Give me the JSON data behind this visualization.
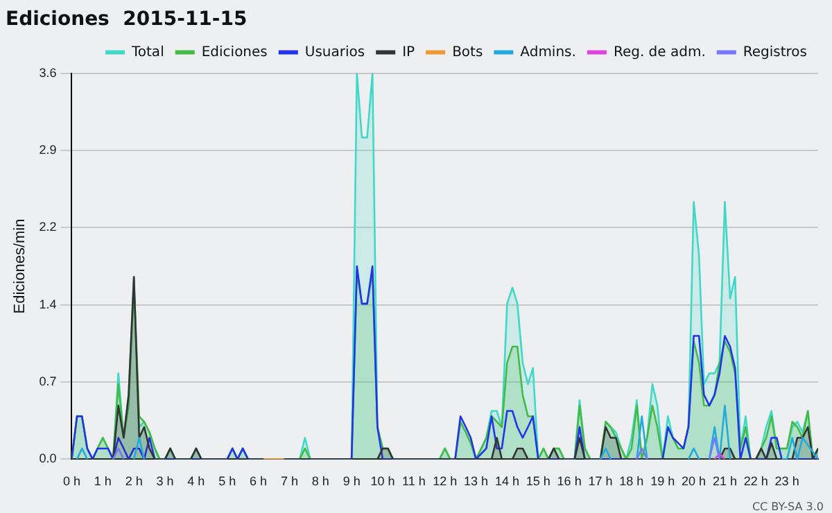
{
  "chart_data": {
    "type": "line",
    "title": "Ediciones  2015-11-15",
    "ylabel": "Ediciones/min",
    "annotations": [
      "CC BY-SA 3.0"
    ],
    "legend": "top right",
    "grid": "y",
    "xlim": [
      0,
      24
    ],
    "xticks": [
      {
        "value": 0,
        "label": "0 h"
      },
      {
        "value": 1,
        "label": "1 h"
      },
      {
        "value": 2,
        "label": "2 h"
      },
      {
        "value": 3,
        "label": "3 h"
      },
      {
        "value": 4,
        "label": "4 h"
      },
      {
        "value": 5,
        "label": "5 h"
      },
      {
        "value": 6,
        "label": "6 h"
      },
      {
        "value": 7,
        "label": "7 h"
      },
      {
        "value": 8,
        "label": "8 h"
      },
      {
        "value": 9,
        "label": "9 h"
      },
      {
        "value": 10,
        "label": "10 h"
      },
      {
        "value": 11,
        "label": "11 h"
      },
      {
        "value": 12,
        "label": "12 h"
      },
      {
        "value": 13,
        "label": "13 h"
      },
      {
        "value": 14,
        "label": "14 h"
      },
      {
        "value": 15,
        "label": "15 h"
      },
      {
        "value": 16,
        "label": "16 h"
      },
      {
        "value": 17,
        "label": "17 h"
      },
      {
        "value": 18,
        "label": "18 h"
      },
      {
        "value": 19,
        "label": "19 h"
      },
      {
        "value": 20,
        "label": "20 h"
      },
      {
        "value": 21,
        "label": "21 h"
      },
      {
        "value": 22,
        "label": "22 h"
      },
      {
        "value": 23,
        "label": "23 h"
      }
    ],
    "ylim": [
      0,
      3.6
    ],
    "yticks": [
      {
        "value": 0,
        "label": "0.0"
      },
      {
        "value": 0.72,
        "label": "0.7"
      },
      {
        "value": 1.44,
        "label": "1.4"
      },
      {
        "value": 2.16,
        "label": "2.2"
      },
      {
        "value": 2.88,
        "label": "2.9"
      },
      {
        "value": 3.6,
        "label": "3.6"
      }
    ],
    "x": [
      0,
      0.17,
      0.33,
      0.5,
      0.67,
      0.83,
      1,
      1.17,
      1.33,
      1.5,
      1.67,
      1.83,
      2,
      2.17,
      2.33,
      2.5,
      2.67,
      2.83,
      3,
      3.17,
      3.33,
      3.83,
      4,
      4.17,
      5,
      5.17,
      5.33,
      5.5,
      5.67,
      7.33,
      7.5,
      7.67,
      9,
      9.17,
      9.33,
      9.5,
      9.67,
      9.83,
      10,
      10.17,
      10.33,
      11.83,
      12,
      12.17,
      12.33,
      12.5,
      12.67,
      12.83,
      13,
      13.17,
      13.33,
      13.5,
      13.67,
      13.83,
      14,
      14.17,
      14.33,
      14.5,
      14.67,
      14.83,
      15,
      15.17,
      15.33,
      15.5,
      15.67,
      15.83,
      16.17,
      16.33,
      16.5,
      16.67,
      17,
      17.17,
      17.33,
      17.5,
      17.67,
      17.83,
      18,
      18.17,
      18.33,
      18.5,
      18.67,
      18.83,
      19,
      19.17,
      19.33,
      19.5,
      19.67,
      19.83,
      20,
      20.17,
      20.33,
      20.5,
      20.67,
      20.83,
      21,
      21.17,
      21.33,
      21.5,
      21.67,
      21.83,
      22,
      22.17,
      22.33,
      22.5,
      22.67,
      22.83,
      23,
      23.17,
      23.33,
      23.5,
      23.67,
      23.83,
      24
    ],
    "series": [
      {
        "name": "Total",
        "type": "area",
        "color": "#40d8c8",
        "values": [
          0,
          0.4,
          0.4,
          0.1,
          0,
          0.1,
          0.2,
          0.1,
          0,
          0.8,
          0.2,
          0.6,
          1.7,
          0.3,
          0.35,
          0.25,
          0.1,
          0,
          0,
          0.1,
          0,
          0,
          0.1,
          0,
          0,
          0.1,
          0,
          0.1,
          0,
          0,
          0.2,
          0,
          0,
          3.6,
          3,
          3,
          3.6,
          0.3,
          0.1,
          0.1,
          0,
          0,
          0.1,
          0,
          0,
          0.35,
          0.25,
          0.15,
          0,
          0.1,
          0.2,
          0.45,
          0.45,
          0.3,
          1.45,
          1.6,
          1.45,
          0.9,
          0.7,
          0.85,
          0,
          0.1,
          0,
          0.1,
          0.1,
          0,
          0,
          0.55,
          0.1,
          0,
          0,
          0.35,
          0.3,
          0.25,
          0.1,
          0,
          0.2,
          0.55,
          0,
          0.2,
          0.7,
          0.5,
          0,
          0.4,
          0.2,
          0.1,
          0.1,
          0.3,
          2.4,
          1.9,
          0.7,
          0.8,
          0.8,
          0.9,
          2.4,
          1.5,
          1.7,
          0.1,
          0.4,
          0,
          0,
          0.1,
          0.3,
          0.45,
          0.1,
          0.1,
          0.1,
          0.3,
          0.35,
          0.25,
          0.45,
          0,
          0.1
        ]
      },
      {
        "name": "Ediciones",
        "type": "area",
        "color": "#44bb44",
        "values": [
          0,
          0.4,
          0.4,
          0.1,
          0,
          0.1,
          0.2,
          0.1,
          0,
          0.7,
          0.2,
          0.5,
          1.65,
          0.4,
          0.35,
          0.25,
          0.1,
          0,
          0,
          0.1,
          0,
          0,
          0.1,
          0,
          0,
          0.1,
          0,
          0.1,
          0,
          0,
          0.1,
          0,
          0,
          1.75,
          1.45,
          1.45,
          1.75,
          0.3,
          0.1,
          0.1,
          0,
          0,
          0.1,
          0,
          0,
          0.35,
          0.25,
          0.15,
          0,
          0.1,
          0.2,
          0.4,
          0.35,
          0.3,
          0.9,
          1.05,
          1.05,
          0.6,
          0.4,
          0.4,
          0,
          0.1,
          0,
          0.1,
          0.1,
          0,
          0,
          0.5,
          0.1,
          0,
          0,
          0.35,
          0.3,
          0.2,
          0.1,
          0,
          0.1,
          0.5,
          0,
          0.2,
          0.5,
          0.3,
          0,
          0.3,
          0.2,
          0.1,
          0.1,
          0.3,
          1.1,
          0.9,
          0.5,
          0.5,
          0.6,
          0.9,
          1.1,
          1,
          0.8,
          0.1,
          0.3,
          0,
          0,
          0.1,
          0.2,
          0.4,
          0.1,
          0.1,
          0.1,
          0.35,
          0.3,
          0.2,
          0.45,
          0,
          0.1
        ]
      },
      {
        "name": "Usuarios",
        "type": "line",
        "color": "#2233ee",
        "x": [
          0,
          0.17,
          0.33,
          0.5,
          0.67,
          0.83,
          1,
          1.17,
          1.33,
          1.5,
          1.67,
          1.83,
          2,
          2.17,
          2.33,
          2.5,
          2.67,
          5,
          5.17,
          5.33,
          5.5,
          5.67,
          9,
          9.17,
          9.33,
          9.5,
          9.67,
          9.83,
          10,
          12.33,
          12.5,
          12.67,
          12.83,
          13,
          13.33,
          13.5,
          13.67,
          13.83,
          14,
          14.17,
          14.33,
          14.5,
          14.67,
          14.83,
          15,
          16.17,
          16.33,
          16.5,
          19,
          19.17,
          19.33,
          19.5,
          19.67,
          19.83,
          20,
          20.17,
          20.33,
          20.5,
          20.67,
          20.83,
          21,
          21.17,
          21.33,
          21.5,
          21.67,
          21.83,
          22.33,
          22.5,
          22.67,
          22.83,
          24
        ],
        "values": [
          0,
          0.4,
          0.4,
          0.1,
          0,
          0.1,
          0.1,
          0.1,
          0,
          0.2,
          0.1,
          0,
          0.1,
          0.1,
          0,
          0.2,
          0,
          0,
          0.1,
          0,
          0.1,
          0,
          0,
          1.8,
          1.45,
          1.45,
          1.8,
          0.3,
          0,
          0,
          0.4,
          0.3,
          0.2,
          0,
          0.1,
          0.4,
          0.1,
          0.1,
          0.45,
          0.45,
          0.3,
          0.2,
          0.3,
          0.4,
          0,
          0,
          0.3,
          0,
          0,
          0.3,
          0.2,
          0.15,
          0.1,
          0.3,
          1.15,
          1.15,
          0.6,
          0.5,
          0.6,
          0.8,
          1.15,
          1.05,
          0.85,
          0,
          0.2,
          0,
          0,
          0.2,
          0.2,
          0,
          0
        ]
      },
      {
        "name": "IP",
        "type": "area",
        "color": "#333333",
        "x": [
          0,
          1.33,
          1.5,
          1.67,
          1.83,
          2,
          2.17,
          2.33,
          2.5,
          2.67,
          3,
          3.17,
          3.33,
          3.83,
          4,
          4.17,
          9.83,
          10,
          10.17,
          10.33,
          13.5,
          13.67,
          13.83,
          14.17,
          14.33,
          14.5,
          14.67,
          15.33,
          15.5,
          15.67,
          16.17,
          16.33,
          16.5,
          17,
          17.17,
          17.33,
          17.5,
          17.67,
          20.83,
          21,
          21.17,
          21.33,
          22,
          22.17,
          22.33,
          22.5,
          22.67,
          23.17,
          23.33,
          23.5,
          23.67,
          23.83,
          24
        ],
        "values": [
          0,
          0,
          0.5,
          0.2,
          0.6,
          1.7,
          0.2,
          0.3,
          0.1,
          0,
          0,
          0.1,
          0,
          0,
          0.1,
          0,
          0,
          0.1,
          0.1,
          0,
          0,
          0.2,
          0,
          0,
          0.1,
          0.1,
          0,
          0,
          0.1,
          0,
          0,
          0.2,
          0,
          0,
          0.3,
          0.2,
          0.2,
          0,
          0,
          0.1,
          0.1,
          0,
          0,
          0.1,
          0,
          0.15,
          0,
          0,
          0.2,
          0.2,
          0.3,
          0,
          0.1
        ]
      },
      {
        "name": "Bots",
        "type": "line",
        "color": "#ee9933",
        "x": [
          6.17,
          6.83
        ],
        "values": [
          0,
          0
        ]
      },
      {
        "name": "Admins.",
        "type": "line",
        "color": "#22aadd",
        "x": [
          0.17,
          0.33,
          0.5,
          1,
          2,
          2.17,
          2.33,
          10,
          17,
          17.17,
          17.33,
          17.75,
          18.17,
          18.33,
          18.5,
          19,
          19.83,
          20,
          20.17,
          20.33,
          20.5,
          20.67,
          20.83,
          21,
          21.17,
          22,
          22.83,
          23,
          23.17,
          23.33,
          23.5,
          24
        ],
        "values": [
          0,
          0.1,
          0,
          null,
          0,
          0.2,
          0,
          null,
          0,
          0.1,
          0,
          null,
          0,
          0.4,
          0,
          null,
          0,
          0.1,
          0,
          null,
          0,
          0.3,
          0,
          0.5,
          0,
          null,
          0,
          0,
          0.2,
          0,
          0.2,
          0
        ]
      },
      {
        "name": "Reg. de adm.",
        "type": "line",
        "color": "#dd44dd",
        "x": [
          20.67,
          20.83,
          21
        ],
        "values": [
          0,
          0.05,
          0
        ]
      },
      {
        "name": "Registros",
        "type": "line",
        "color": "#7777ff",
        "x": [
          1.33,
          1.5,
          1.67,
          10,
          18.17,
          18.33,
          18.5,
          19.5,
          20.5,
          20.67,
          20.83
        ],
        "values": [
          0,
          0.1,
          0,
          null,
          0,
          0.1,
          0,
          null,
          0,
          0.2,
          0
        ]
      }
    ]
  }
}
